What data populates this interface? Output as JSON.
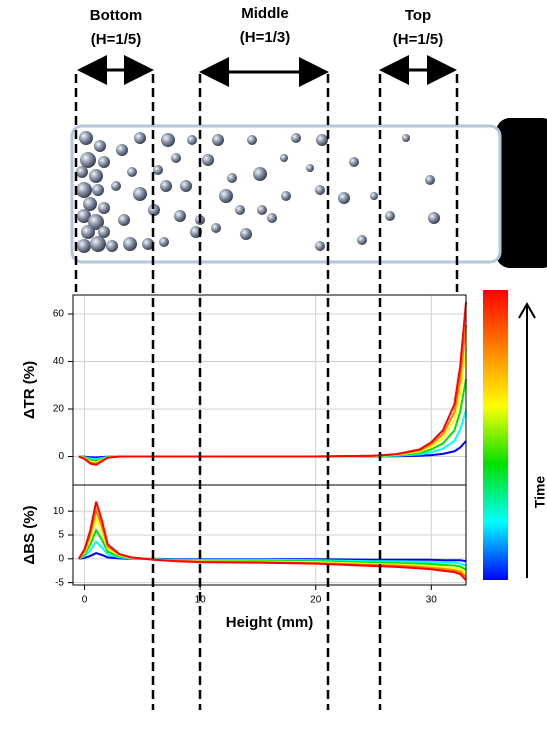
{
  "chart_data": [
    {
      "type": "line",
      "ylabel": "ΔTR (%)",
      "annotations": [
        "Bottom",
        "(H=1/5)",
        "Middle",
        "(H=1/3)",
        "Top",
        "(H=1/5)",
        "Time"
      ],
      "x": [
        -0.5,
        0,
        0.5,
        1,
        1.5,
        2,
        3,
        4,
        6,
        8,
        10,
        15,
        20,
        25,
        27,
        29,
        30,
        31,
        32,
        32.5,
        33
      ],
      "xlim": [
        -1,
        33
      ],
      "ylim": [
        -12,
        68
      ],
      "yticks": [
        0,
        20,
        40,
        60
      ],
      "grid": true,
      "series": [
        {
          "color": "#0000ff",
          "values": [
            0,
            -0.1,
            -0.3,
            -0.4,
            -0.2,
            -0.1,
            0,
            0,
            0,
            0,
            0,
            0,
            0,
            0,
            0.1,
            0.3,
            0.6,
            1.1,
            2.2,
            3.8,
            6.5
          ]
        },
        {
          "color": "#00ffff",
          "values": [
            0,
            -0.3,
            -0.9,
            -1.1,
            -0.6,
            -0.2,
            0,
            0,
            0,
            0,
            0,
            0,
            0,
            0.1,
            0.3,
            0.9,
            1.8,
            3.3,
            6.6,
            11.4,
            19.5
          ]
        },
        {
          "color": "#00e000",
          "values": [
            0,
            -0.5,
            -1.5,
            -1.8,
            -1,
            -0.3,
            0,
            0,
            0,
            0,
            0,
            0,
            0,
            0.2,
            0.5,
            1.5,
            3,
            5.5,
            11,
            19,
            32.5
          ]
        },
        {
          "color": "#ffff00",
          "values": [
            0,
            -0.7,
            -2.1,
            -2.5,
            -1.4,
            -0.4,
            0,
            0,
            0,
            0,
            0,
            0,
            0,
            0.2,
            0.7,
            2.1,
            4.2,
            7.7,
            15.4,
            26.6,
            45.5
          ]
        },
        {
          "color": "#ff8000",
          "values": [
            0,
            -0.9,
            -2.6,
            -3,
            -1.7,
            -0.4,
            0,
            0,
            0,
            0,
            0,
            0,
            0,
            0.3,
            0.9,
            2.6,
            5.1,
            9.4,
            18.7,
            32.3,
            55.3
          ]
        },
        {
          "color": "#ff0000",
          "values": [
            0,
            -1,
            -3,
            -3.5,
            -2,
            -0.5,
            0,
            0,
            0,
            0,
            0,
            0,
            0,
            0.3,
            1,
            3,
            6,
            11,
            22,
            38,
            65
          ]
        }
      ]
    },
    {
      "type": "line",
      "ylabel": "ΔBS (%)",
      "xlabel": "Height (mm)",
      "x": [
        -0.5,
        0,
        0.5,
        1,
        1.5,
        2,
        3,
        4,
        6,
        8,
        10,
        15,
        20,
        25,
        27,
        29,
        30,
        31,
        32,
        32.5,
        33
      ],
      "xlim": [
        -1,
        33
      ],
      "xticks": [
        0,
        10,
        20,
        30
      ],
      "ylim": [
        -5.5,
        15.5
      ],
      "yticks": [
        -5,
        0,
        5,
        10
      ],
      "grid": true,
      "series": [
        {
          "color": "#0000ff",
          "values": [
            0,
            0.2,
            0.6,
            1.2,
            0.8,
            0.3,
            0.1,
            0,
            0,
            -0.1,
            -0.1,
            -0.1,
            -0.1,
            -0.2,
            -0.2,
            -0.2,
            -0.2,
            -0.3,
            -0.3,
            -0.3,
            -0.5
          ]
        },
        {
          "color": "#00ffff",
          "values": [
            0,
            0.6,
            1.8,
            3.6,
            2.4,
            0.9,
            0.3,
            0.1,
            -0.1,
            -0.2,
            -0.2,
            -0.2,
            -0.3,
            -0.5,
            -0.5,
            -0.6,
            -0.7,
            -0.8,
            -0.8,
            -1,
            -1.4
          ]
        },
        {
          "color": "#00e000",
          "values": [
            0,
            1,
            3,
            6,
            4,
            1.5,
            0.5,
            0.2,
            -0.1,
            -0.3,
            -0.4,
            -0.4,
            -0.5,
            -0.8,
            -0.9,
            -1,
            -1.1,
            -1.3,
            -1.4,
            -1.6,
            -2.3
          ]
        },
        {
          "color": "#ffff00",
          "values": [
            0,
            1.4,
            4.2,
            8.4,
            5.6,
            2.1,
            0.7,
            0.2,
            -0.1,
            -0.4,
            -0.5,
            -0.6,
            -0.7,
            -1.1,
            -1.2,
            -1.4,
            -1.5,
            -1.8,
            -2,
            -2.2,
            -3.2
          ]
        },
        {
          "color": "#ff8000",
          "values": [
            0,
            1.7,
            5.1,
            10.2,
            6.8,
            2.6,
            0.9,
            0.3,
            -0.2,
            -0.4,
            -0.6,
            -0.7,
            -0.9,
            -1.3,
            -1.4,
            -1.7,
            -1.9,
            -2.1,
            -2.4,
            -2.7,
            -3.8
          ]
        },
        {
          "color": "#ff0000",
          "values": [
            0,
            2,
            6,
            12,
            8,
            3,
            1,
            0.3,
            -0.2,
            -0.5,
            -0.7,
            -0.8,
            -1,
            -1.5,
            -1.7,
            -2,
            -2.2,
            -2.5,
            -2.8,
            -3.2,
            -4.5
          ]
        }
      ]
    }
  ]
}
